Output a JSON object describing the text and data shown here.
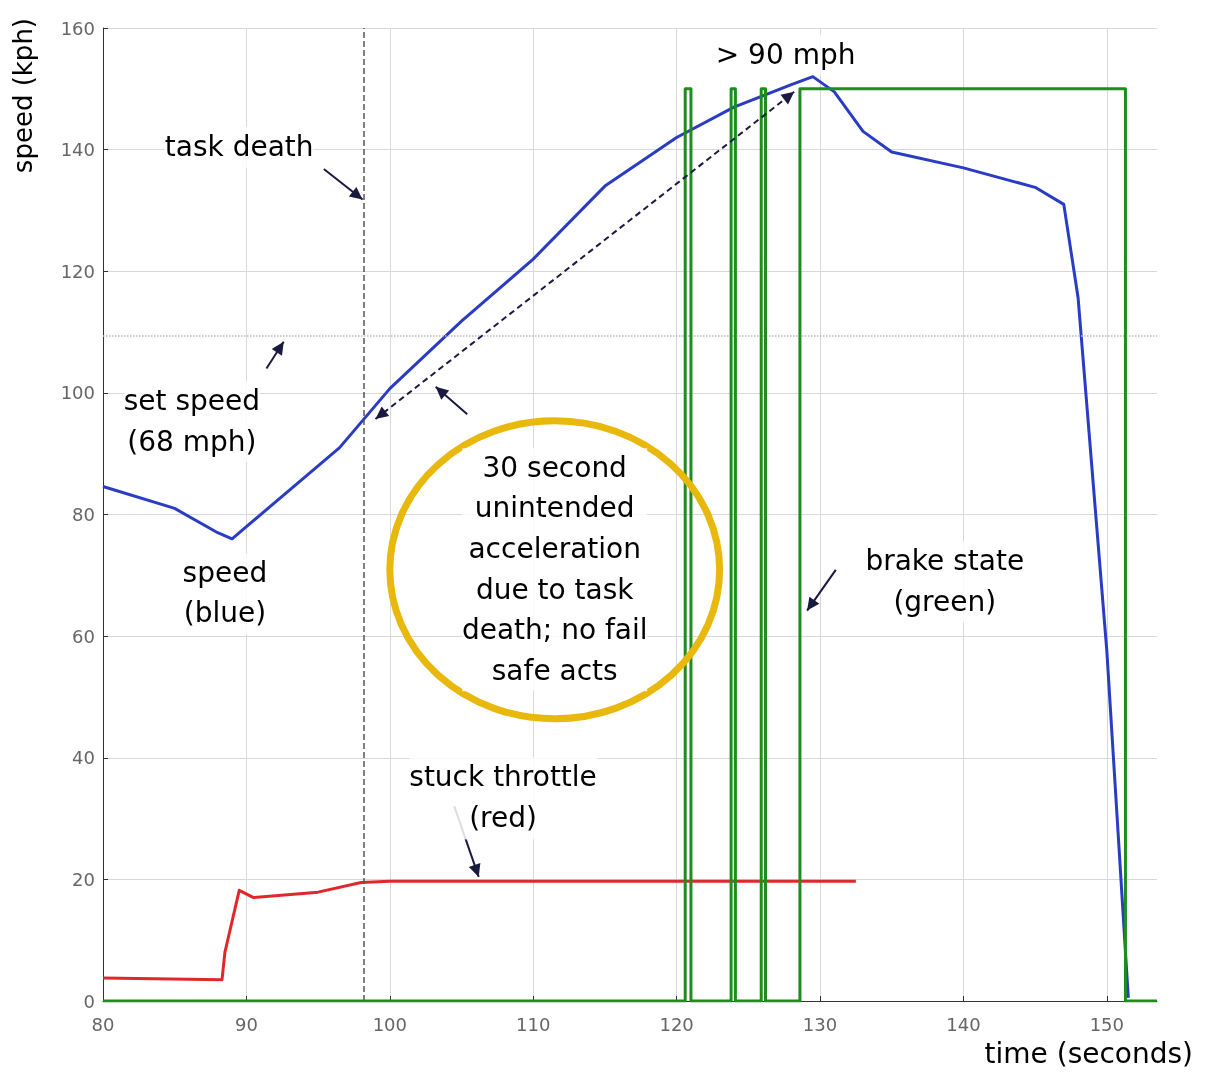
{
  "chart_data": {
    "type": "line",
    "xlabel": "time (seconds)",
    "ylabel": "speed (kph)",
    "xlim": [
      80,
      153.5
    ],
    "ylim": [
      0,
      160
    ],
    "xticks": [
      80,
      90,
      100,
      110,
      120,
      130,
      140,
      150
    ],
    "yticks": [
      0,
      20,
      40,
      60,
      80,
      100,
      120,
      140,
      160
    ],
    "grid": true,
    "marker": "none",
    "line_style": "solid",
    "series": [
      {
        "color": "#2b3cc4",
        "x": [
          80,
          85,
          88,
          89,
          90,
          95,
          96.5,
          100,
          105,
          110,
          115,
          120,
          124,
          128,
          129.5,
          131,
          133,
          135,
          140,
          145,
          147,
          148,
          150,
          151.5
        ],
        "values": [
          84.6,
          81,
          77,
          76,
          78,
          88,
          91,
          100.7,
          111.8,
          122,
          134,
          142,
          147,
          150.7,
          152,
          149.5,
          143,
          139.6,
          137,
          133.8,
          131,
          115.6,
          57.6,
          0.5
        ]
      },
      {
        "color": "#e0282a",
        "x": [
          80,
          88.3,
          88.5,
          89.5,
          90.5,
          95,
          98,
          100,
          132.5
        ],
        "values": [
          3.8,
          3.5,
          8,
          18.2,
          17,
          17.9,
          19.5,
          19.7,
          19.7
        ]
      },
      {
        "color": "#1e8c1e",
        "x": [
          80,
          120.6,
          120.6,
          121,
          121,
          123.8,
          123.8,
          124.1,
          124.1,
          125.9,
          125.9,
          126.2,
          126.2,
          128.6,
          128.6,
          151.3,
          151.3,
          153.5
        ],
        "values": [
          0,
          0,
          150,
          150,
          0,
          0,
          150,
          150,
          0,
          0,
          150,
          150,
          0,
          0,
          150,
          150,
          0,
          0
        ]
      }
    ],
    "ref_lines": [
      {
        "axis": "x",
        "value": 98.2,
        "color": "#555555",
        "line_style": "dashed"
      },
      {
        "axis": "y",
        "value": 109.4,
        "color": "#bbbbbb",
        "line_style": "dotted"
      }
    ],
    "annotations": [
      "task death",
      "> 90 mph",
      "set speed\n(68 mph)",
      "speed\n(blue)",
      "30 second\nunintended\nacceleration\ndue to task\ndeath; no fail\nsafe acts",
      "stuck throttle\n(red)",
      "brake state\n(green)"
    ]
  }
}
